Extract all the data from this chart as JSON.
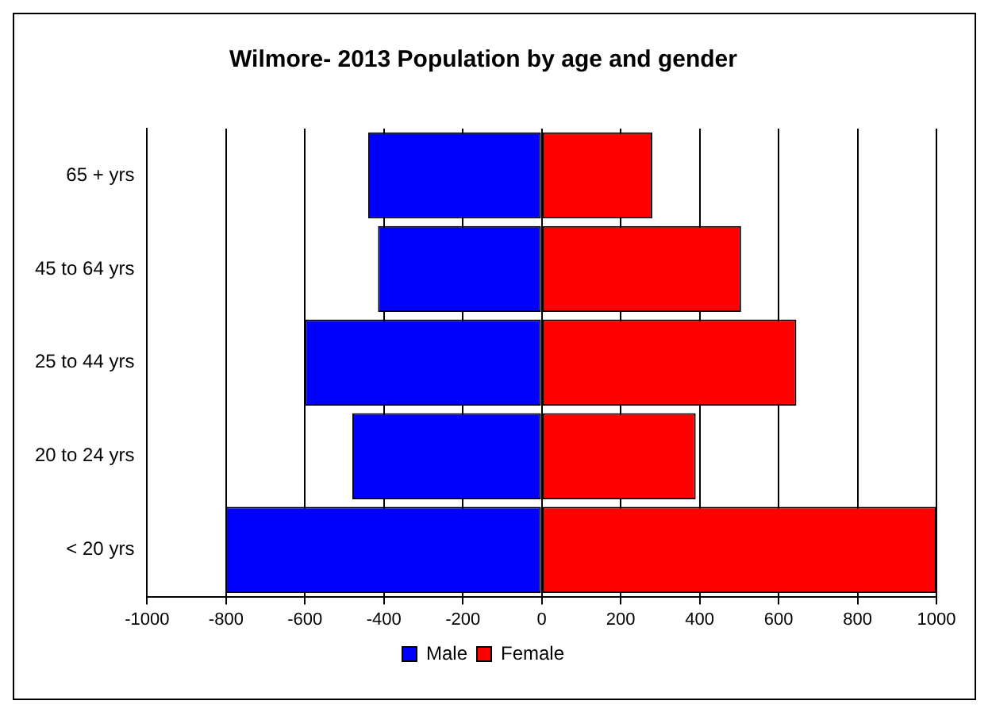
{
  "chart_data": {
    "type": "bar",
    "orientation": "horizontal",
    "stacked": true,
    "title": "Wilmore- 2013 Population by age and gender",
    "categories": [
      "65 + yrs",
      "45 to 64 yrs",
      "25 to 44 yrs",
      "20 to 24 yrs",
      "< 20 yrs"
    ],
    "series": [
      {
        "name": "Male",
        "color": "#0000ff",
        "values": [
          -440,
          -415,
          -600,
          -480,
          -800
        ]
      },
      {
        "name": "Female",
        "color": "#ff0000",
        "values": [
          280,
          505,
          645,
          390,
          1000
        ]
      }
    ],
    "xlim": [
      -1000,
      1000
    ],
    "xticks": [
      -1000,
      -800,
      -600,
      -400,
      -200,
      0,
      200,
      400,
      600,
      800,
      1000
    ],
    "grid": "x",
    "legend": "bottom"
  }
}
